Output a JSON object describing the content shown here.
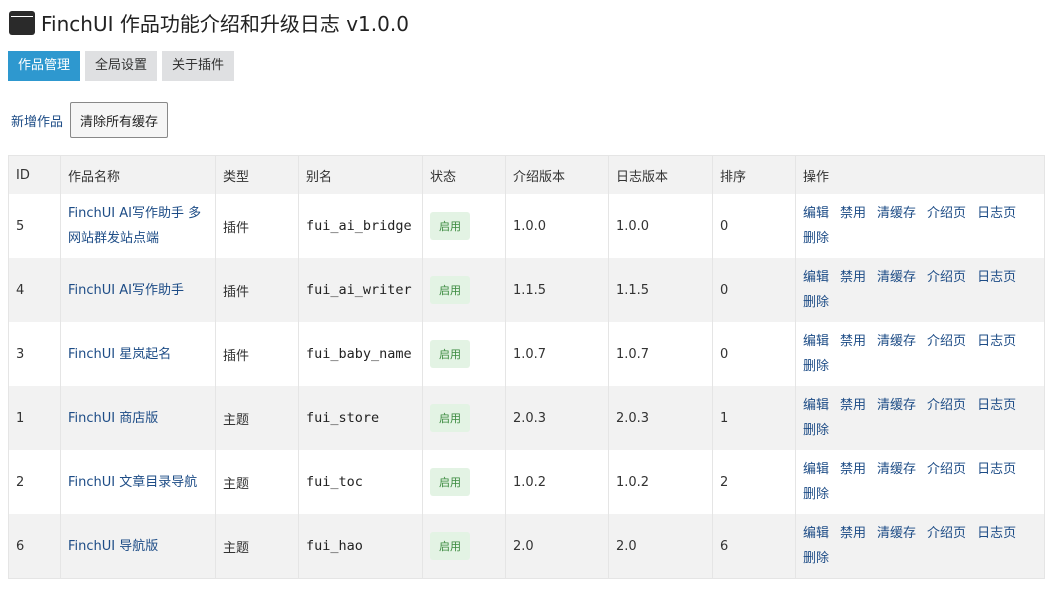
{
  "header": {
    "title": "FinchUI 作品功能介绍和升级日志 v1.0.0"
  },
  "tabs": [
    {
      "label": "作品管理",
      "active": true
    },
    {
      "label": "全局设置"
    },
    {
      "label": "关于插件"
    }
  ],
  "toolbar": {
    "add_label": "新增作品",
    "clear_label": "清除所有缓存"
  },
  "colors": {
    "accent": "#2e98cf",
    "link": "#1d4c86",
    "badge_bg": "#e3f3e4",
    "badge_text": "#3a8a3e"
  },
  "table": {
    "headers": [
      "ID",
      "作品名称",
      "类型",
      "别名",
      "状态",
      "介绍版本",
      "日志版本",
      "排序",
      "操作"
    ],
    "rows": [
      {
        "id": "5",
        "name": "FinchUI AI写作助手 多网站群发站点端",
        "type": "插件",
        "slug": "fui_ai_bridge",
        "status": "启用",
        "intro": "1.0.0",
        "log": "1.0.0",
        "order": "0"
      },
      {
        "id": "4",
        "name": "FinchUI AI写作助手",
        "type": "插件",
        "slug": "fui_ai_writer",
        "status": "启用",
        "intro": "1.1.5",
        "log": "1.1.5",
        "order": "0"
      },
      {
        "id": "3",
        "name": "FinchUI 星岚起名",
        "type": "插件",
        "slug": "fui_baby_name",
        "status": "启用",
        "intro": "1.0.7",
        "log": "1.0.7",
        "order": "0"
      },
      {
        "id": "1",
        "name": "FinchUI 商店版",
        "type": "主题",
        "slug": "fui_store",
        "status": "启用",
        "intro": "2.0.3",
        "log": "2.0.3",
        "order": "1"
      },
      {
        "id": "2",
        "name": "FinchUI 文章目录导航",
        "type": "主题",
        "slug": "fui_toc",
        "status": "启用",
        "intro": "1.0.2",
        "log": "1.0.2",
        "order": "2"
      },
      {
        "id": "6",
        "name": "FinchUI 导航版",
        "type": "主题",
        "slug": "fui_hao",
        "status": "启用",
        "intro": "2.0",
        "log": "2.0",
        "order": "6"
      }
    ],
    "ops": [
      "编辑",
      "禁用",
      "清缓存",
      "介绍页",
      "日志页",
      "删除"
    ]
  }
}
